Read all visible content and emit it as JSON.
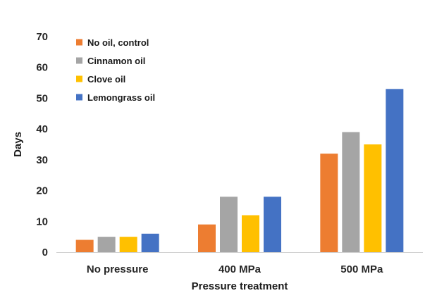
{
  "chart_data": {
    "type": "bar",
    "title": "",
    "xlabel": "Pressure treatment",
    "ylabel": "Days",
    "ylim": [
      0,
      70
    ],
    "yticks": [
      0,
      10,
      20,
      30,
      40,
      50,
      60,
      70
    ],
    "grid": false,
    "legend_position": "top-left",
    "categories": [
      "No pressure",
      "400 MPa",
      "500 MPa"
    ],
    "series": [
      {
        "name": "No oil, control",
        "color": "#ED7D31",
        "values": [
          4,
          9,
          32
        ]
      },
      {
        "name": "Cinnamon oil",
        "color": "#A5A5A5",
        "values": [
          5,
          18,
          39
        ]
      },
      {
        "name": "Clove oil",
        "color": "#FFC000",
        "values": [
          5,
          12,
          35
        ]
      },
      {
        "name": "Lemongrass oil",
        "color": "#4472C4",
        "values": [
          6,
          18,
          53
        ]
      }
    ]
  }
}
